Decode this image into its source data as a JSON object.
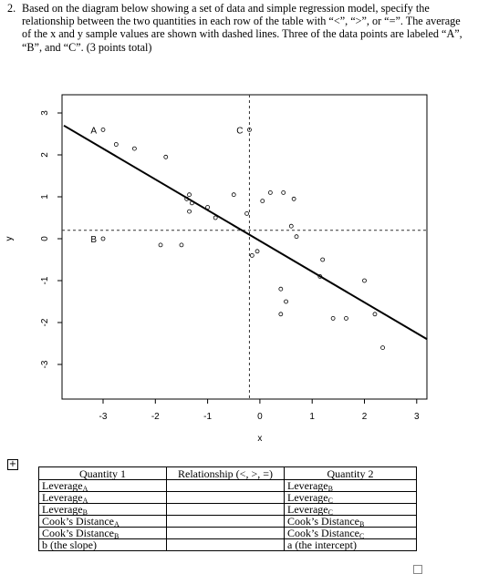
{
  "question": {
    "number": "2.",
    "text": "Based on the diagram below showing a set of data and simple regression model, specify the relationship between the two quantities in each row of the table with “<”, “>”, or “=”. The average of the x and y sample values are shown with dashed lines. Three of the data points are labeled “A”, “B”, and “C”. (3 points total)"
  },
  "chart_data": {
    "type": "scatter",
    "xlabel": "x",
    "ylabel": "y",
    "xlim": [
      -3.5,
      3.2
    ],
    "ylim": [
      -3.3,
      3.4
    ],
    "xticks": [
      -3,
      -2,
      -1,
      0,
      1,
      2,
      3
    ],
    "yticks": [
      3,
      2,
      1,
      0,
      -1,
      -2,
      -3
    ],
    "xbar": -0.2,
    "ybar": 0.2,
    "regression_line": {
      "x": [
        -3.75,
        3.2
      ],
      "y": [
        2.7,
        -2.4
      ]
    },
    "labeled_points": [
      {
        "label": "A",
        "x": -3.0,
        "y": 2.6
      },
      {
        "label": "B",
        "x": -3.0,
        "y": 0.0
      },
      {
        "label": "C",
        "x": -0.2,
        "y": 2.6
      }
    ],
    "points": [
      {
        "x": -3.0,
        "y": 2.6
      },
      {
        "x": -2.75,
        "y": 2.25
      },
      {
        "x": -2.4,
        "y": 2.15
      },
      {
        "x": -1.8,
        "y": 1.95
      },
      {
        "x": -3.0,
        "y": 0.0
      },
      {
        "x": -0.2,
        "y": 2.6
      },
      {
        "x": -1.4,
        "y": 0.95
      },
      {
        "x": -1.35,
        "y": 1.05
      },
      {
        "x": -1.3,
        "y": 0.85
      },
      {
        "x": -1.35,
        "y": 0.65
      },
      {
        "x": -1.0,
        "y": 0.75
      },
      {
        "x": -0.85,
        "y": 0.5
      },
      {
        "x": -0.5,
        "y": 1.05
      },
      {
        "x": -0.25,
        "y": 0.6
      },
      {
        "x": 0.05,
        "y": 0.9
      },
      {
        "x": 0.2,
        "y": 1.1
      },
      {
        "x": 0.45,
        "y": 1.1
      },
      {
        "x": 0.65,
        "y": 0.95
      },
      {
        "x": -1.9,
        "y": -0.15
      },
      {
        "x": -1.5,
        "y": -0.15
      },
      {
        "x": -0.15,
        "y": -0.4
      },
      {
        "x": -0.05,
        "y": -0.3
      },
      {
        "x": 0.6,
        "y": 0.3
      },
      {
        "x": 0.7,
        "y": 0.05
      },
      {
        "x": 1.2,
        "y": -0.5
      },
      {
        "x": 1.15,
        "y": -0.9
      },
      {
        "x": 0.4,
        "y": -1.2
      },
      {
        "x": 0.5,
        "y": -1.5
      },
      {
        "x": 0.4,
        "y": -1.8
      },
      {
        "x": 1.4,
        "y": -1.9
      },
      {
        "x": 1.65,
        "y": -1.9
      },
      {
        "x": 2.0,
        "y": -1.0
      },
      {
        "x": 2.2,
        "y": -1.8
      },
      {
        "x": 2.35,
        "y": -2.6
      }
    ]
  },
  "table": {
    "expand_icon": "+",
    "headers": [
      "Quantity 1",
      "Relationship (<, >, =)",
      "Quantity 2"
    ],
    "rows": [
      {
        "q1": "Leverage",
        "q1_sub": "A",
        "q2": "Leverage",
        "q2_sub": "B"
      },
      {
        "q1": "Leverage",
        "q1_sub": "A",
        "q2": "Leverage",
        "q2_sub": "C"
      },
      {
        "q1": "Leverage",
        "q1_sub": "B",
        "q2": "Leverage",
        "q2_sub": "C"
      },
      {
        "q1": "Cook’s Distance",
        "q1_sub": "A",
        "q2": "Cook’s Distance",
        "q2_sub": "B"
      },
      {
        "q1": "Cook’s Distance",
        "q1_sub": "B",
        "q2": "Cook’s Distance",
        "q2_sub": "C"
      },
      {
        "q1": "b (the slope)",
        "q1_sub": "",
        "q2": "a (the intercept)",
        "q2_sub": ""
      }
    ]
  }
}
